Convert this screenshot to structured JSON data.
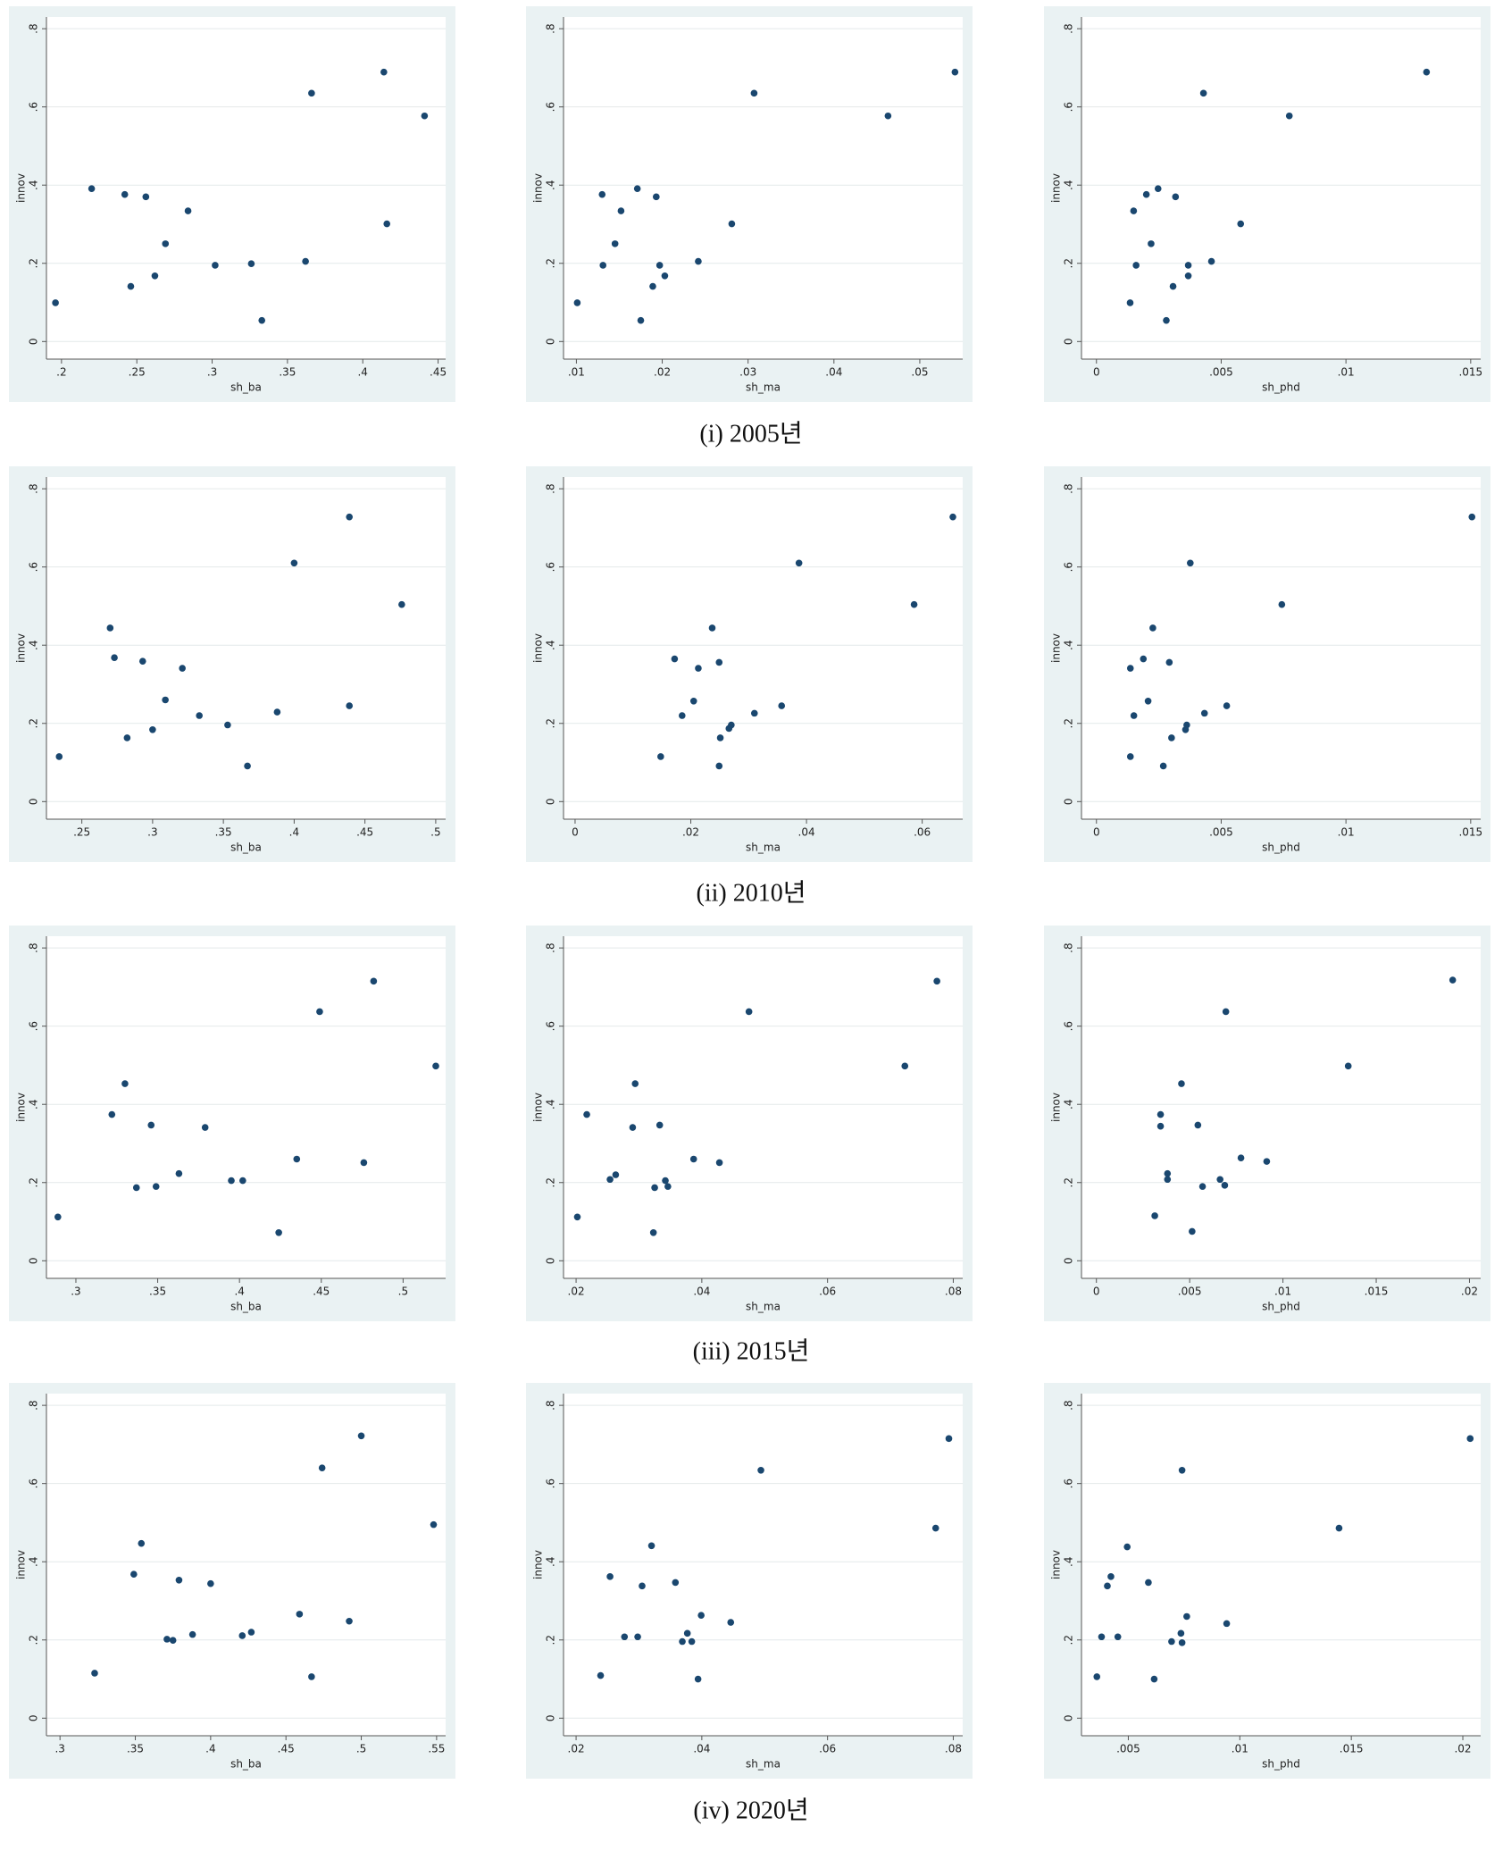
{
  "chart_data": [
    {
      "type": "scatter",
      "xlabel": "sh_ba",
      "ylabel": "innov",
      "color": "#1a476f",
      "grid": true,
      "x": [
        0.196,
        0.22,
        0.242,
        0.256,
        0.246,
        0.262,
        0.269,
        0.284,
        0.302,
        0.326,
        0.333,
        0.362,
        0.366,
        0.414,
        0.416,
        0.441
      ],
      "values": [
        0.099,
        0.391,
        0.376,
        0.37,
        0.141,
        0.168,
        0.25,
        0.334,
        0.195,
        0.199,
        0.054,
        0.205,
        0.635,
        0.689,
        0.301,
        0.577
      ],
      "xlim": [
        0.19,
        0.455
      ],
      "ylim": [
        -0.045,
        0.83
      ],
      "xticks": [
        {
          "value": 0.2,
          "label": ".2"
        },
        {
          "value": 0.25,
          "label": ".25"
        },
        {
          "value": 0.3,
          "label": ".3"
        },
        {
          "value": 0.35,
          "label": ".35"
        },
        {
          "value": 0.4,
          "label": ".4"
        },
        {
          "value": 0.45,
          "label": ".45"
        }
      ],
      "yticks": [
        0,
        {
          "value": 0.2,
          "label": ".2"
        },
        {
          "value": 0.4,
          "label": ".4"
        },
        {
          "value": 0.6,
          "label": ".6"
        },
        {
          "value": 0.8,
          "label": ".8"
        }
      ]
    },
    {
      "type": "scatter",
      "xlabel": "sh_ma",
      "ylabel": "innov",
      "color": "#1a476f",
      "grid": true,
      "x": [
        0.0101,
        0.0131,
        0.013,
        0.0145,
        0.0152,
        0.0171,
        0.0175,
        0.0189,
        0.0193,
        0.0197,
        0.0203,
        0.0242,
        0.0281,
        0.0307,
        0.0463,
        0.0541
      ],
      "values": [
        0.099,
        0.195,
        0.376,
        0.25,
        0.334,
        0.391,
        0.054,
        0.141,
        0.37,
        0.195,
        0.168,
        0.205,
        0.301,
        0.635,
        0.577,
        0.689
      ],
      "xlim": [
        0.0085,
        0.055
      ],
      "ylim": [
        -0.045,
        0.83
      ],
      "xticks": [
        {
          "value": 0.01,
          "label": ".01"
        },
        {
          "value": 0.02,
          "label": ".02"
        },
        {
          "value": 0.03,
          "label": ".03"
        },
        {
          "value": 0.04,
          "label": ".04"
        },
        {
          "value": 0.05,
          "label": ".05"
        }
      ],
      "yticks": [
        0,
        {
          "value": 0.2,
          "label": ".2"
        },
        {
          "value": 0.4,
          "label": ".4"
        },
        {
          "value": 0.6,
          "label": ".6"
        },
        {
          "value": 0.8,
          "label": ".8"
        }
      ]
    },
    {
      "type": "scatter",
      "xlabel": "sh_phd",
      "ylabel": "innov",
      "color": "#1a476f",
      "grid": true,
      "x": [
        0.00135,
        0.00159,
        0.00149,
        0.002,
        0.00219,
        0.00247,
        0.0028,
        0.00307,
        0.00317,
        0.00368,
        0.00368,
        0.00429,
        0.00461,
        0.00578,
        0.00773,
        0.01323
      ],
      "values": [
        0.099,
        0.195,
        0.334,
        0.376,
        0.25,
        0.391,
        0.054,
        0.141,
        0.37,
        0.195,
        0.168,
        0.635,
        0.205,
        0.301,
        0.577,
        0.689
      ],
      "xlim": [
        -0.0006,
        0.0154
      ],
      "ylim": [
        -0.045,
        0.83
      ],
      "xticks": [
        0,
        {
          "value": 0.005,
          "label": ".005"
        },
        {
          "value": 0.01,
          "label": ".01"
        },
        {
          "value": 0.015,
          "label": ".015"
        }
      ],
      "yticks": [
        0,
        {
          "value": 0.2,
          "label": ".2"
        },
        {
          "value": 0.4,
          "label": ".4"
        },
        {
          "value": 0.6,
          "label": ".6"
        },
        {
          "value": 0.8,
          "label": ".8"
        }
      ]
    },
    {
      "type": "scatter",
      "xlabel": "sh_ba",
      "ylabel": "innov",
      "color": "#1a476f",
      "grid": true,
      "x": [
        0.234,
        0.27,
        0.273,
        0.282,
        0.293,
        0.3,
        0.309,
        0.321,
        0.333,
        0.353,
        0.367,
        0.388,
        0.4,
        0.439,
        0.439,
        0.476
      ],
      "values": [
        0.115,
        0.444,
        0.368,
        0.163,
        0.359,
        0.184,
        0.26,
        0.341,
        0.22,
        0.196,
        0.091,
        0.229,
        0.61,
        0.728,
        0.245,
        0.504
      ],
      "xlim": [
        0.225,
        0.507
      ],
      "ylim": [
        -0.045,
        0.83
      ],
      "xticks": [
        {
          "value": 0.25,
          "label": ".25"
        },
        {
          "value": 0.3,
          "label": ".3"
        },
        {
          "value": 0.35,
          "label": ".35"
        },
        {
          "value": 0.4,
          "label": ".4"
        },
        {
          "value": 0.45,
          "label": ".45"
        },
        {
          "value": 0.5,
          "label": ".5"
        }
      ],
      "yticks": [
        0,
        {
          "value": 0.2,
          "label": ".2"
        },
        {
          "value": 0.4,
          "label": ".4"
        },
        {
          "value": 0.6,
          "label": ".6"
        },
        {
          "value": 0.8,
          "label": ".8"
        }
      ]
    },
    {
      "type": "scatter",
      "xlabel": "sh_ma",
      "ylabel": "innov",
      "color": "#1a476f",
      "grid": true,
      "x": [
        0.0148,
        0.0172,
        0.0185,
        0.0205,
        0.0213,
        0.0237,
        0.0249,
        0.0251,
        0.0249,
        0.0266,
        0.027,
        0.031,
        0.0357,
        0.0387,
        0.0586,
        0.0653
      ],
      "values": [
        0.115,
        0.365,
        0.22,
        0.257,
        0.341,
        0.444,
        0.356,
        0.163,
        0.091,
        0.187,
        0.196,
        0.226,
        0.245,
        0.61,
        0.504,
        0.728
      ],
      "xlim": [
        -0.002,
        0.067
      ],
      "ylim": [
        -0.045,
        0.83
      ],
      "xticks": [
        0,
        {
          "value": 0.02,
          "label": ".02"
        },
        {
          "value": 0.04,
          "label": ".04"
        },
        {
          "value": 0.06,
          "label": ".06"
        }
      ],
      "yticks": [
        0,
        {
          "value": 0.2,
          "label": ".2"
        },
        {
          "value": 0.4,
          "label": ".4"
        },
        {
          "value": 0.6,
          "label": ".6"
        },
        {
          "value": 0.8,
          "label": ".8"
        }
      ]
    },
    {
      "type": "scatter",
      "xlabel": "sh_phd",
      "ylabel": "innov",
      "color": "#1a476f",
      "grid": true,
      "x": [
        0.00136,
        0.00136,
        0.0015,
        0.00188,
        0.00207,
        0.00226,
        0.00268,
        0.00292,
        0.00301,
        0.00357,
        0.00362,
        0.00433,
        0.00376,
        0.00522,
        0.00743,
        0.01505
      ],
      "values": [
        0.115,
        0.341,
        0.22,
        0.365,
        0.257,
        0.444,
        0.091,
        0.356,
        0.163,
        0.184,
        0.196,
        0.226,
        0.61,
        0.245,
        0.504,
        0.728
      ],
      "xlim": [
        -0.0006,
        0.0154
      ],
      "ylim": [
        -0.045,
        0.83
      ],
      "xticks": [
        0,
        {
          "value": 0.005,
          "label": ".005"
        },
        {
          "value": 0.01,
          "label": ".01"
        },
        {
          "value": 0.015,
          "label": ".015"
        }
      ],
      "yticks": [
        0,
        {
          "value": 0.2,
          "label": ".2"
        },
        {
          "value": 0.4,
          "label": ".4"
        },
        {
          "value": 0.6,
          "label": ".6"
        },
        {
          "value": 0.8,
          "label": ".8"
        }
      ]
    },
    {
      "type": "scatter",
      "xlabel": "sh_ba",
      "ylabel": "innov",
      "color": "#1a476f",
      "grid": true,
      "x": [
        0.289,
        0.322,
        0.33,
        0.337,
        0.346,
        0.349,
        0.363,
        0.379,
        0.395,
        0.402,
        0.424,
        0.435,
        0.449,
        0.476,
        0.482,
        0.52
      ],
      "values": [
        0.112,
        0.374,
        0.453,
        0.187,
        0.347,
        0.19,
        0.223,
        0.341,
        0.205,
        0.205,
        0.072,
        0.26,
        0.637,
        0.251,
        0.715,
        0.498
      ],
      "xlim": [
        0.282,
        0.526
      ],
      "ylim": [
        -0.045,
        0.83
      ],
      "xticks": [
        {
          "value": 0.3,
          "label": ".3"
        },
        {
          "value": 0.35,
          "label": ".35"
        },
        {
          "value": 0.4,
          "label": ".4"
        },
        {
          "value": 0.45,
          "label": ".45"
        },
        {
          "value": 0.5,
          "label": ".5"
        }
      ],
      "yticks": [
        0,
        {
          "value": 0.2,
          "label": ".2"
        },
        {
          "value": 0.4,
          "label": ".4"
        },
        {
          "value": 0.6,
          "label": ".6"
        },
        {
          "value": 0.8,
          "label": ".8"
        }
      ]
    },
    {
      "type": "scatter",
      "xlabel": "sh_ma",
      "ylabel": "innov",
      "color": "#1a476f",
      "grid": true,
      "x": [
        0.0202,
        0.0217,
        0.0254,
        0.0263,
        0.029,
        0.0294,
        0.0325,
        0.0323,
        0.0333,
        0.0342,
        0.0346,
        0.0387,
        0.0428,
        0.0475,
        0.0723,
        0.0774
      ],
      "values": [
        0.112,
        0.374,
        0.208,
        0.22,
        0.341,
        0.453,
        0.187,
        0.072,
        0.347,
        0.205,
        0.19,
        0.26,
        0.251,
        0.637,
        0.498,
        0.715
      ],
      "xlim": [
        0.018,
        0.0815
      ],
      "ylim": [
        -0.045,
        0.83
      ],
      "xticks": [
        {
          "value": 0.02,
          "label": ".02"
        },
        {
          "value": 0.04,
          "label": ".04"
        },
        {
          "value": 0.06,
          "label": ".06"
        },
        {
          "value": 0.08,
          "label": ".08"
        }
      ],
      "yticks": [
        0,
        {
          "value": 0.2,
          "label": ".2"
        },
        {
          "value": 0.4,
          "label": ".4"
        },
        {
          "value": 0.6,
          "label": ".6"
        },
        {
          "value": 0.8,
          "label": ".8"
        }
      ]
    },
    {
      "type": "scatter",
      "xlabel": "sh_phd",
      "ylabel": "innov",
      "color": "#1a476f",
      "grid": true,
      "x": [
        0.00313,
        0.00344,
        0.00344,
        0.00381,
        0.00381,
        0.00456,
        0.00513,
        0.00544,
        0.00569,
        0.00663,
        0.00688,
        0.00694,
        0.00775,
        0.00913,
        0.0135,
        0.0191
      ],
      "values": [
        0.115,
        0.374,
        0.344,
        0.223,
        0.208,
        0.453,
        0.075,
        0.347,
        0.19,
        0.208,
        0.193,
        0.637,
        0.263,
        0.254,
        0.498,
        0.718
      ],
      "xlim": [
        -0.0008,
        0.0206
      ],
      "ylim": [
        -0.045,
        0.83
      ],
      "xticks": [
        0,
        {
          "value": 0.005,
          "label": ".005"
        },
        {
          "value": 0.01,
          "label": ".01"
        },
        {
          "value": 0.015,
          "label": ".015"
        },
        {
          "value": 0.02,
          "label": ".02"
        }
      ],
      "yticks": [
        0,
        {
          "value": 0.2,
          "label": ".2"
        },
        {
          "value": 0.4,
          "label": ".4"
        },
        {
          "value": 0.6,
          "label": ".6"
        },
        {
          "value": 0.8,
          "label": ".8"
        }
      ]
    },
    {
      "type": "scatter",
      "xlabel": "sh_ba",
      "ylabel": "innov",
      "color": "#1a476f",
      "grid": true,
      "x": [
        0.323,
        0.349,
        0.354,
        0.371,
        0.375,
        0.379,
        0.388,
        0.4,
        0.421,
        0.427,
        0.459,
        0.467,
        0.474,
        0.492,
        0.5,
        0.548
      ],
      "values": [
        0.115,
        0.368,
        0.447,
        0.202,
        0.199,
        0.353,
        0.214,
        0.344,
        0.211,
        0.22,
        0.266,
        0.106,
        0.64,
        0.248,
        0.722,
        0.495
      ],
      "xlim": [
        0.291,
        0.556
      ],
      "ylim": [
        -0.045,
        0.83
      ],
      "xticks": [
        {
          "value": 0.3,
          "label": ".3"
        },
        {
          "value": 0.35,
          "label": ".35"
        },
        {
          "value": 0.4,
          "label": ".4"
        },
        {
          "value": 0.45,
          "label": ".45"
        },
        {
          "value": 0.5,
          "label": ".5"
        },
        {
          "value": 0.55,
          "label": ".55"
        }
      ],
      "yticks": [
        0,
        {
          "value": 0.2,
          "label": ".2"
        },
        {
          "value": 0.4,
          "label": ".4"
        },
        {
          "value": 0.6,
          "label": ".6"
        },
        {
          "value": 0.8,
          "label": ".8"
        }
      ]
    },
    {
      "type": "scatter",
      "xlabel": "sh_ma",
      "ylabel": "innov",
      "color": "#1a476f",
      "grid": true,
      "x": [
        0.0239,
        0.0254,
        0.0277,
        0.0298,
        0.0305,
        0.032,
        0.0358,
        0.0369,
        0.0377,
        0.0384,
        0.0394,
        0.0399,
        0.0446,
        0.0494,
        0.0772,
        0.0793
      ],
      "values": [
        0.109,
        0.362,
        0.208,
        0.208,
        0.338,
        0.441,
        0.347,
        0.196,
        0.217,
        0.196,
        0.1,
        0.263,
        0.245,
        0.634,
        0.486,
        0.715
      ],
      "xlim": [
        0.018,
        0.0815
      ],
      "ylim": [
        -0.045,
        0.83
      ],
      "xticks": [
        {
          "value": 0.02,
          "label": ".02"
        },
        {
          "value": 0.04,
          "label": ".04"
        },
        {
          "value": 0.06,
          "label": ".06"
        },
        {
          "value": 0.08,
          "label": ".08"
        }
      ],
      "yticks": [
        0,
        {
          "value": 0.2,
          "label": ".2"
        },
        {
          "value": 0.4,
          "label": ".4"
        },
        {
          "value": 0.6,
          "label": ".6"
        },
        {
          "value": 0.8,
          "label": ".8"
        }
      ]
    },
    {
      "type": "scatter",
      "xlabel": "sh_phd",
      "ylabel": "innov",
      "color": "#1a476f",
      "grid": true,
      "x": [
        0.00359,
        0.0038,
        0.00406,
        0.00422,
        0.00453,
        0.00495,
        0.0059,
        0.00616,
        0.00694,
        0.00736,
        0.00741,
        0.00741,
        0.00762,
        0.00941,
        0.01445,
        0.02033
      ],
      "values": [
        0.106,
        0.208,
        0.338,
        0.362,
        0.208,
        0.438,
        0.347,
        0.1,
        0.196,
        0.217,
        0.634,
        0.193,
        0.26,
        0.242,
        0.486,
        0.715
      ],
      "xlim": [
        0.0029,
        0.0208
      ],
      "ylim": [
        -0.045,
        0.83
      ],
      "xticks": [
        {
          "value": 0.005,
          "label": ".005"
        },
        {
          "value": 0.01,
          "label": ".01"
        },
        {
          "value": 0.015,
          "label": ".015"
        },
        {
          "value": 0.02,
          "label": ".02"
        }
      ],
      "yticks": [
        0,
        {
          "value": 0.2,
          "label": ".2"
        },
        {
          "value": 0.4,
          "label": ".4"
        },
        {
          "value": 0.6,
          "label": ".6"
        },
        {
          "value": 0.8,
          "label": ".8"
        }
      ]
    }
  ],
  "captions": [
    "(i) 2005년",
    "(ii) 2010년",
    "(iii) 2015년",
    "(iv) 2020년"
  ]
}
